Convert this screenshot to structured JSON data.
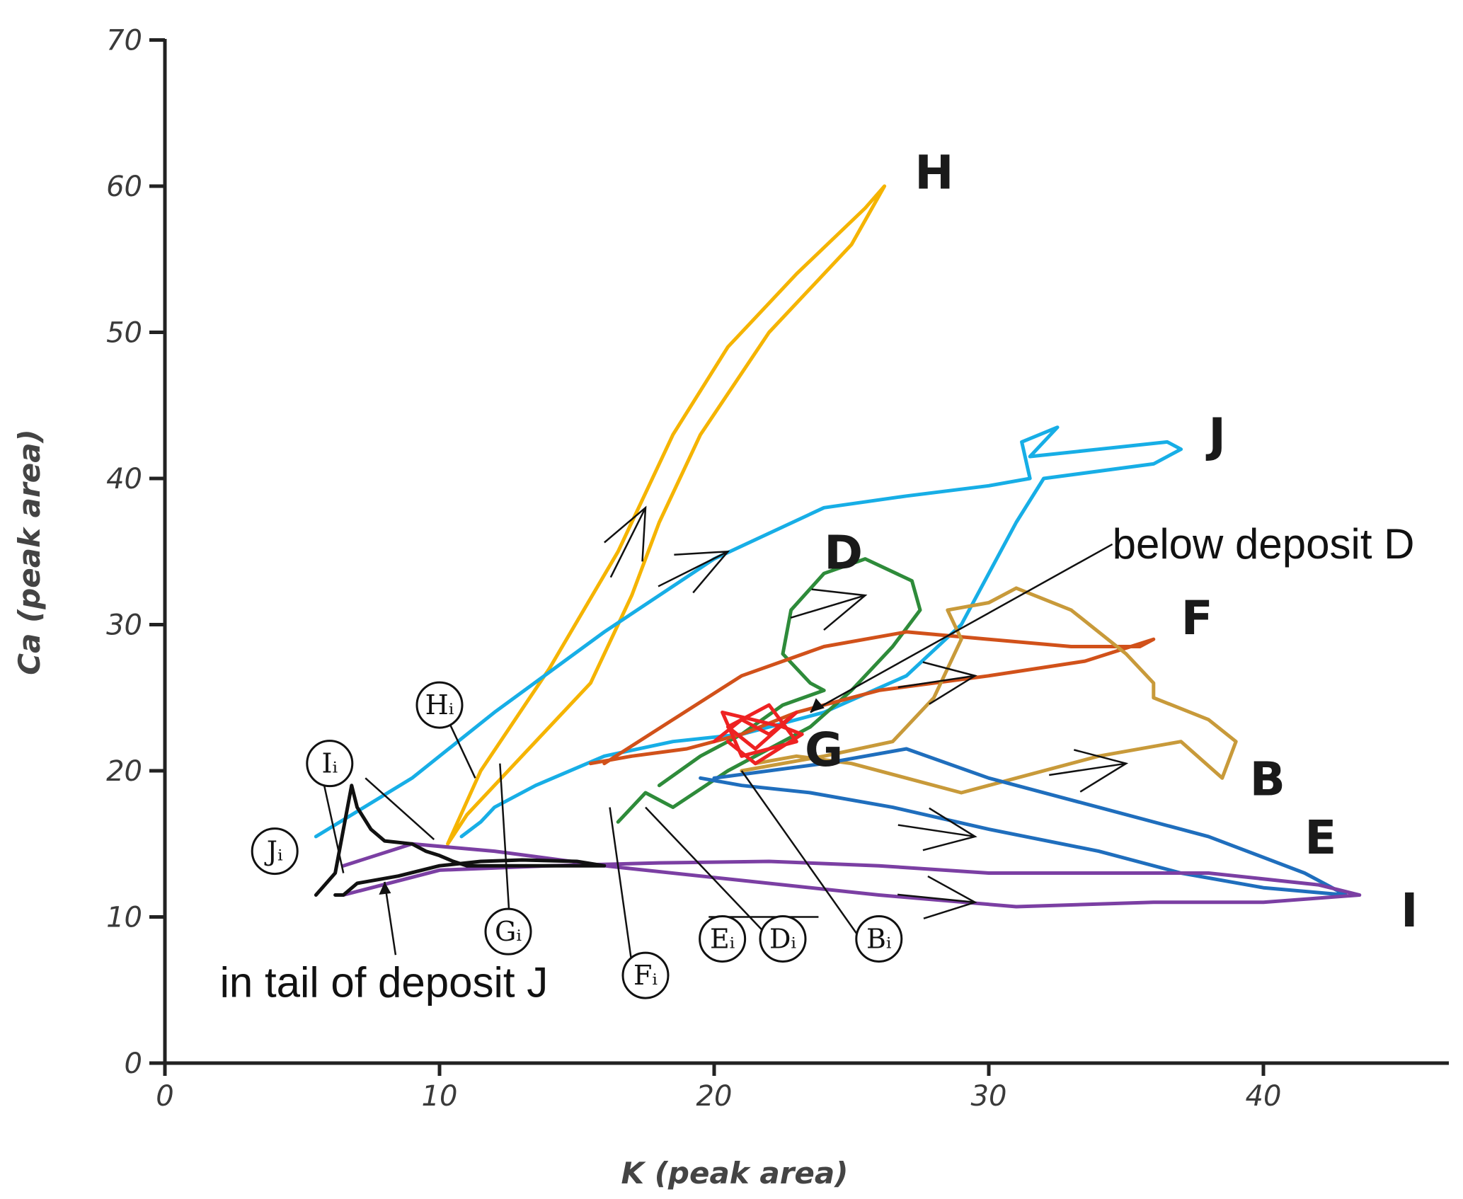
{
  "chart_data": {
    "type": "line",
    "xlabel": "K (peak area)",
    "ylabel": "Ca (peak area)",
    "xlim": [
      0,
      46
    ],
    "ylim": [
      0,
      70
    ],
    "xticks": [
      0,
      10,
      20,
      30,
      40
    ],
    "yticks": [
      0,
      10,
      20,
      30,
      40,
      50,
      60,
      70
    ],
    "series": [
      {
        "name": "H",
        "color": "#f5b400",
        "x": [
          10.3,
          11.5,
          14,
          16.5,
          18.5,
          20.5,
          23,
          25.5,
          26.2,
          25,
          22,
          19.5,
          18,
          17,
          15.5,
          13,
          11,
          10.3
        ],
        "y": [
          15,
          20,
          27,
          35,
          43,
          49,
          54,
          58.5,
          60,
          56,
          50,
          43,
          37,
          32,
          26,
          21,
          17,
          15
        ]
      },
      {
        "name": "J",
        "color": "#17aee6",
        "x": [
          5.5,
          9,
          12,
          16,
          20,
          24,
          27,
          30,
          31.5,
          31.2,
          32.5,
          31.5,
          34,
          36.5,
          37,
          36,
          32,
          31,
          30,
          29,
          27,
          24,
          21,
          18.5,
          16,
          13.5,
          12,
          11.5,
          10.8
        ],
        "y": [
          15.5,
          19.5,
          24,
          29.5,
          34.5,
          38,
          38.8,
          39.5,
          40,
          42.5,
          43.5,
          41.5,
          42,
          42.5,
          42,
          41,
          40,
          37,
          33.5,
          30,
          26.5,
          24,
          22.5,
          22,
          21,
          19,
          17.5,
          16.5,
          15.5
        ]
      },
      {
        "name": "D",
        "color": "#2e8b3a",
        "x": [
          16.5,
          17.5,
          18.5,
          20.5,
          22,
          23.5,
          25,
          26.5,
          27.5,
          27.2,
          25.5,
          24,
          22.8,
          22.5,
          23.5,
          24,
          22.5,
          21,
          19.5,
          18
        ],
        "y": [
          16.5,
          18.5,
          17.5,
          20,
          21.5,
          23,
          25.5,
          28.5,
          31,
          33,
          34.5,
          33.5,
          31,
          28,
          26,
          25.5,
          24.5,
          22.5,
          21,
          19
        ]
      },
      {
        "name": "F",
        "color": "#d1511a",
        "x": [
          16,
          18.5,
          21,
          24,
          27,
          30,
          33,
          35.5,
          36,
          33.5,
          30,
          26,
          23,
          21,
          19,
          17,
          15.5
        ],
        "y": [
          20.5,
          23.5,
          26.5,
          28.5,
          29.5,
          29,
          28.5,
          28.5,
          29,
          27.5,
          26.5,
          25.5,
          24,
          22.5,
          21.5,
          21,
          20.5
        ]
      },
      {
        "name": "B",
        "color": "#c89a3a",
        "x": [
          21,
          24,
          26.5,
          28,
          29,
          28.5,
          30,
          31,
          33,
          35,
          36,
          36,
          38,
          39,
          38.5,
          37,
          34,
          31,
          29,
          27,
          25,
          23,
          21.5
        ],
        "y": [
          20,
          21,
          22,
          25,
          29,
          31,
          31.5,
          32.5,
          31,
          28,
          26,
          25,
          23.5,
          22,
          19.5,
          22,
          21,
          19.5,
          18.5,
          19.5,
          20.5,
          21,
          20.5
        ]
      },
      {
        "name": "E",
        "color": "#1f6ebd",
        "x": [
          20,
          24,
          27,
          30,
          34,
          38,
          41.5,
          43,
          40,
          37,
          34,
          30,
          26.5,
          23.5,
          21,
          19.5
        ],
        "y": [
          19.5,
          20.5,
          21.5,
          19.5,
          17.5,
          15.5,
          13,
          11.5,
          12,
          13,
          14.5,
          16,
          17.5,
          18.5,
          19,
          19.5
        ]
      },
      {
        "name": "I",
        "color": "#7b3fa3",
        "x": [
          6.5,
          10,
          14,
          18,
          22,
          26,
          30,
          34,
          38,
          42,
          43.5,
          40,
          36,
          31,
          26,
          21,
          16,
          12,
          9,
          6.5
        ],
        "y": [
          11.5,
          13.2,
          13.5,
          13.7,
          13.8,
          13.5,
          13,
          13,
          13,
          12.2,
          11.5,
          11,
          11,
          10.7,
          11.5,
          12.5,
          13.5,
          14.5,
          15,
          13.5
        ]
      },
      {
        "name": "G",
        "color": "#ee2222",
        "x": [
          20,
          21,
          22,
          23,
          21.5,
          20.5,
          22,
          23,
          21,
          20.3,
          22.5,
          23.2,
          21.5,
          20.5
        ],
        "y": [
          22,
          23.5,
          22.5,
          24,
          21.5,
          23,
          24.5,
          22,
          21,
          24,
          23,
          22.5,
          20.5,
          22
        ]
      },
      {
        "name": "deposit-J tail",
        "color": "#111111",
        "x": [
          5.5,
          6.2,
          6.5,
          6.8,
          7,
          7.5,
          8,
          9,
          9.5,
          10,
          10.5,
          11,
          13,
          16,
          15,
          13,
          11.5,
          10,
          8.5,
          7,
          6.5,
          6.2
        ],
        "y": [
          11.5,
          13,
          16,
          19,
          17.5,
          16,
          15.2,
          15,
          14.5,
          14.2,
          13.8,
          13.5,
          13.5,
          13.5,
          13.8,
          13.9,
          13.8,
          13.5,
          12.8,
          12.3,
          11.5,
          11.5
        ]
      }
    ],
    "series_labels": [
      {
        "text": "H",
        "x": 27.3,
        "y": 61
      },
      {
        "text": "J",
        "x": 38,
        "y": 43
      },
      {
        "text": "D",
        "x": 24,
        "y": 35
      },
      {
        "text": "F",
        "x": 37,
        "y": 30.5
      },
      {
        "text": "G",
        "x": 23.3,
        "y": 21.5
      },
      {
        "text": "B",
        "x": 39.5,
        "y": 19.5
      },
      {
        "text": "E",
        "x": 41.5,
        "y": 15.5
      },
      {
        "text": "I",
        "x": 45,
        "y": 10.5
      }
    ],
    "annotations": [
      {
        "text": "below deposit D",
        "x": 34.5,
        "y": 35.5
      },
      {
        "text": "in tail of deposit J",
        "x": 2,
        "y": 5.5
      }
    ],
    "initial_point_labels": [
      {
        "text": "Hᵢ",
        "x": 10,
        "y": 24.5
      },
      {
        "text": "Iᵢ",
        "x": 6,
        "y": 20.5
      },
      {
        "text": "Jᵢ",
        "x": 4,
        "y": 14.5
      },
      {
        "text": "Gᵢ",
        "x": 12.5,
        "y": 9
      },
      {
        "text": "Fᵢ",
        "x": 17.5,
        "y": 6
      },
      {
        "text": "Eᵢ",
        "x": 20.3,
        "y": 8.5
      },
      {
        "text": "Dᵢ",
        "x": 22.5,
        "y": 8.5
      },
      {
        "text": "Bᵢ",
        "x": 26,
        "y": 8.5
      }
    ]
  }
}
